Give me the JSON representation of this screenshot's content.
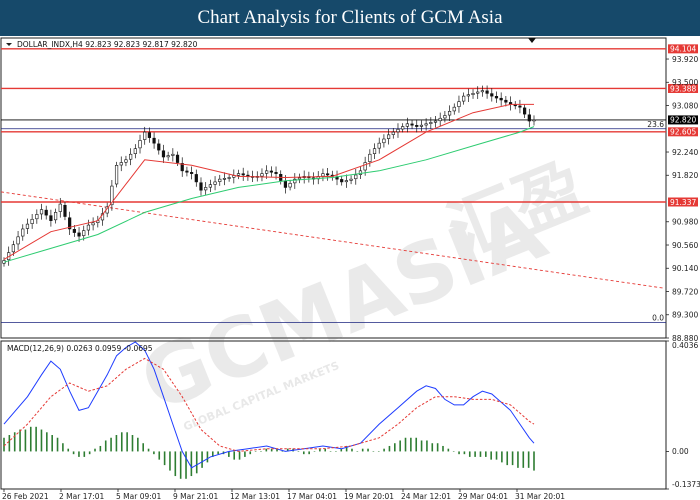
{
  "title": "Chart Analysis for Clients of GCM Asia",
  "symbol_header": "DOLLAR_INDX,H4  92.823 92.823 92.817 92.820",
  "watermark": {
    "brand": "GCMASIA",
    "chinese": "汇盈",
    "tagline": "GLOBAL CAPITAL MARKETS"
  },
  "chart_data": [
    {
      "type": "candlestick",
      "ylim": [
        88.88,
        94.3
      ],
      "y_ticks": [
        "93.920",
        "93.500",
        "93.080",
        "92.240",
        "91.820",
        "90.980",
        "90.560",
        "90.140",
        "89.720",
        "89.300",
        "88.880"
      ],
      "x_ticks": [
        "26 Feb 2021",
        "2 Mar 17:01",
        "5 Mar 09:01",
        "9 Mar 21:01",
        "12 Mar 13:01",
        "17 Mar 04:01",
        "19 Mar 20:01",
        "24 Mar 12:01",
        "29 Mar 04:01",
        "31 Mar 20:01"
      ],
      "close_path": [
        [
          0,
          90.28
        ],
        [
          4,
          90.85
        ],
        [
          8,
          91.2
        ],
        [
          10,
          91.0
        ],
        [
          12,
          91.3
        ],
        [
          14,
          90.85
        ],
        [
          16,
          90.72
        ],
        [
          18,
          90.92
        ],
        [
          20,
          91.0
        ],
        [
          22,
          91.25
        ],
        [
          24,
          92.0
        ],
        [
          26,
          92.1
        ],
        [
          28,
          92.3
        ],
        [
          30,
          92.6
        ],
        [
          32,
          92.4
        ],
        [
          34,
          92.15
        ],
        [
          36,
          92.2
        ],
        [
          38,
          91.9
        ],
        [
          40,
          91.85
        ],
        [
          42,
          91.55
        ],
        [
          44,
          91.65
        ],
        [
          46,
          91.75
        ],
        [
          48,
          91.78
        ],
        [
          50,
          91.85
        ],
        [
          52,
          91.8
        ],
        [
          54,
          91.8
        ],
        [
          56,
          91.9
        ],
        [
          58,
          91.85
        ],
        [
          60,
          91.6
        ],
        [
          62,
          91.75
        ],
        [
          64,
          91.8
        ],
        [
          66,
          91.75
        ],
        [
          68,
          91.85
        ],
        [
          70,
          91.8
        ],
        [
          72,
          91.7
        ],
        [
          74,
          91.75
        ],
        [
          76,
          91.9
        ],
        [
          78,
          92.2
        ],
        [
          80,
          92.4
        ],
        [
          82,
          92.55
        ],
        [
          84,
          92.65
        ],
        [
          86,
          92.75
        ],
        [
          88,
          92.7
        ],
        [
          90,
          92.75
        ],
        [
          92,
          92.8
        ],
        [
          94,
          92.9
        ],
        [
          96,
          93.05
        ],
        [
          98,
          93.25
        ],
        [
          100,
          93.3
        ],
        [
          102,
          93.35
        ],
        [
          104,
          93.25
        ],
        [
          106,
          93.18
        ],
        [
          108,
          93.1
        ],
        [
          110,
          93.05
        ],
        [
          112,
          92.8
        ],
        [
          113,
          92.82
        ]
      ],
      "series": [
        {
          "name": "MA-red",
          "color": "#e53935",
          "values": [
            [
              0,
              90.3
            ],
            [
              10,
              90.8
            ],
            [
              20,
              91.0
            ],
            [
              30,
              92.1
            ],
            [
              40,
              92.0
            ],
            [
              50,
              91.8
            ],
            [
              60,
              91.78
            ],
            [
              70,
              91.8
            ],
            [
              80,
              92.1
            ],
            [
              90,
              92.6
            ],
            [
              100,
              92.95
            ],
            [
              108,
              93.1
            ],
            [
              113,
              93.1
            ]
          ]
        },
        {
          "name": "MA-green",
          "color": "#2ecc71",
          "values": [
            [
              0,
              90.25
            ],
            [
              8,
              90.45
            ],
            [
              20,
              90.75
            ],
            [
              30,
              91.15
            ],
            [
              40,
              91.4
            ],
            [
              50,
              91.6
            ],
            [
              60,
              91.72
            ],
            [
              70,
              91.78
            ],
            [
              80,
              91.9
            ],
            [
              90,
              92.1
            ],
            [
              100,
              92.35
            ],
            [
              110,
              92.6
            ],
            [
              113,
              92.7
            ]
          ]
        }
      ],
      "horizontal_levels": [
        {
          "value": 94.104,
          "label": "94.104",
          "color": "#e53935"
        },
        {
          "value": 93.388,
          "label": "93.388",
          "color": "#e53935"
        },
        {
          "value": 92.82,
          "label": "92.820",
          "color": "#000000"
        },
        {
          "value": 92.605,
          "label": "92.605",
          "color": "#e53935"
        },
        {
          "value": 91.337,
          "label": "91.337",
          "color": "#e53935"
        }
      ],
      "fib_levels": [
        {
          "value": 92.66,
          "label": "23.6"
        },
        {
          "value": 89.16,
          "label": "0.0"
        }
      ],
      "dashed_trendline": [
        [
          0,
          91.52
        ],
        [
          119,
          89.78
        ]
      ]
    },
    {
      "type": "macd",
      "header": "MACD(12,26,9) 0.0263 0.0959 -0.0695",
      "ylim": [
        -0.1373,
        0.4036
      ],
      "y_ticks": [
        "0.4036",
        "0.00",
        "-0.1373"
      ],
      "macd_line": [
        [
          0,
          0.1
        ],
        [
          5,
          0.2
        ],
        [
          8,
          0.28
        ],
        [
          10,
          0.33
        ],
        [
          12,
          0.3
        ],
        [
          14,
          0.22
        ],
        [
          16,
          0.15
        ],
        [
          18,
          0.16
        ],
        [
          20,
          0.22
        ],
        [
          22,
          0.28
        ],
        [
          24,
          0.35
        ],
        [
          26,
          0.38
        ],
        [
          28,
          0.4
        ],
        [
          30,
          0.37
        ],
        [
          32,
          0.3
        ],
        [
          34,
          0.2
        ],
        [
          36,
          0.1
        ],
        [
          38,
          0.0
        ],
        [
          40,
          -0.06
        ],
        [
          42,
          -0.04
        ],
        [
          44,
          -0.02
        ],
        [
          48,
          0.0
        ],
        [
          52,
          0.01
        ],
        [
          56,
          0.02
        ],
        [
          60,
          0.0
        ],
        [
          64,
          0.01
        ],
        [
          68,
          0.02
        ],
        [
          72,
          0.01
        ],
        [
          76,
          0.03
        ],
        [
          80,
          0.1
        ],
        [
          84,
          0.16
        ],
        [
          88,
          0.22
        ],
        [
          90,
          0.24
        ],
        [
          92,
          0.23
        ],
        [
          94,
          0.19
        ],
        [
          96,
          0.17
        ],
        [
          98,
          0.17
        ],
        [
          100,
          0.2
        ],
        [
          102,
          0.22
        ],
        [
          104,
          0.21
        ],
        [
          106,
          0.18
        ],
        [
          108,
          0.15
        ],
        [
          110,
          0.1
        ],
        [
          112,
          0.05
        ],
        [
          113,
          0.03
        ]
      ],
      "signal_line": [
        [
          0,
          0.02
        ],
        [
          5,
          0.1
        ],
        [
          10,
          0.2
        ],
        [
          14,
          0.25
        ],
        [
          18,
          0.22
        ],
        [
          22,
          0.24
        ],
        [
          26,
          0.3
        ],
        [
          30,
          0.34
        ],
        [
          34,
          0.3
        ],
        [
          38,
          0.2
        ],
        [
          42,
          0.08
        ],
        [
          46,
          0.02
        ],
        [
          50,
          0.0
        ],
        [
          56,
          0.01
        ],
        [
          62,
          0.01
        ],
        [
          68,
          0.01
        ],
        [
          74,
          0.02
        ],
        [
          80,
          0.05
        ],
        [
          84,
          0.1
        ],
        [
          88,
          0.16
        ],
        [
          92,
          0.2
        ],
        [
          96,
          0.2
        ],
        [
          100,
          0.19
        ],
        [
          104,
          0.19
        ],
        [
          108,
          0.17
        ],
        [
          112,
          0.11
        ],
        [
          113,
          0.1
        ]
      ],
      "histogram": [
        0.05,
        0.06,
        0.07,
        0.08,
        0.08,
        0.09,
        0.09,
        0.08,
        0.07,
        0.06,
        0.05,
        0.03,
        0.01,
        -0.01,
        -0.02,
        -0.02,
        -0.01,
        0.01,
        0.02,
        0.04,
        0.05,
        0.06,
        0.07,
        0.07,
        0.06,
        0.05,
        0.03,
        0.01,
        -0.01,
        -0.03,
        -0.05,
        -0.07,
        -0.09,
        -0.1,
        -0.1,
        -0.09,
        -0.08,
        -0.06,
        -0.04,
        -0.02,
        -0.01,
        -0.01,
        -0.02,
        -0.03,
        -0.03,
        -0.02,
        -0.01,
        0.0,
        0.0,
        0.01,
        0.01,
        0.01,
        0.0,
        0.01,
        0.01,
        0.0,
        -0.01,
        -0.01,
        0.0,
        0.01,
        0.01,
        0.0,
        0.0,
        0.01,
        0.02,
        0.01,
        0.0,
        0.01,
        0.01,
        0.0,
        0.0,
        0.01,
        0.02,
        0.03,
        0.04,
        0.05,
        0.05,
        0.05,
        0.04,
        0.04,
        0.03,
        0.03,
        0.02,
        0.01,
        0.0,
        -0.01,
        -0.01,
        -0.02,
        -0.02,
        -0.02,
        -0.02,
        -0.03,
        -0.03,
        -0.04,
        -0.05,
        -0.05,
        -0.06,
        -0.06,
        -0.06,
        -0.07
      ]
    }
  ]
}
